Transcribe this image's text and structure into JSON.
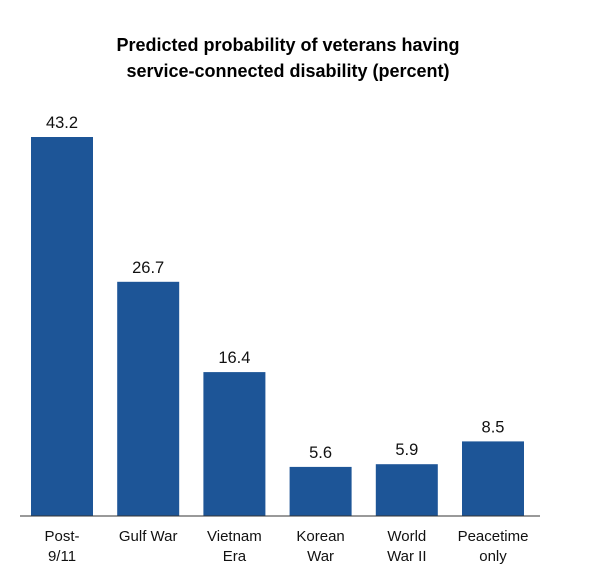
{
  "chart_data": {
    "type": "bar",
    "title_lines": [
      "Predicted probability of veterans having",
      "service-connected disability (percent)"
    ],
    "categories": [
      [
        "Post-",
        "9/11"
      ],
      [
        "Gulf War"
      ],
      [
        "Vietnam",
        "Era"
      ],
      [
        "Korean",
        "War"
      ],
      [
        "World",
        "War II"
      ],
      [
        "Peacetime",
        "only"
      ]
    ],
    "values": [
      43.2,
      26.7,
      16.4,
      5.6,
      5.9,
      8.5
    ],
    "value_labels": [
      "43.2",
      "26.7",
      "16.4",
      "5.6",
      "5.9",
      "8.5"
    ],
    "xlabel": "",
    "ylabel": "",
    "ylim": [
      0,
      43.2
    ],
    "grid": false,
    "legend": "none",
    "bar_color": "#1d5597",
    "axis_color": "#333333"
  }
}
